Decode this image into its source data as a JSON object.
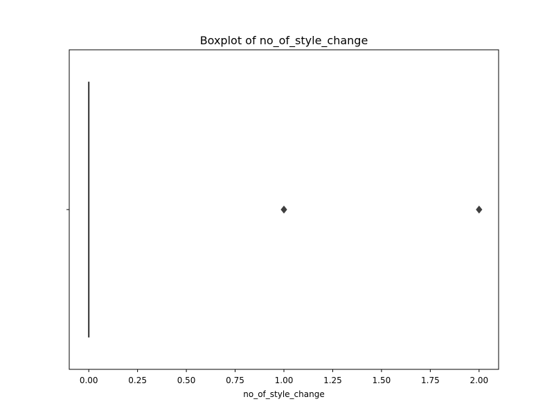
{
  "chart_data": {
    "type": "boxplot",
    "title": "Boxplot of no_of_style_change",
    "xlabel": "no_of_style_change",
    "ylabel": "",
    "orientation": "horizontal",
    "xlim": [
      -0.1,
      2.1
    ],
    "xticks": [
      0.0,
      0.25,
      0.5,
      0.75,
      1.0,
      1.25,
      1.5,
      1.75,
      2.0
    ],
    "xtick_labels": [
      "0.00",
      "0.25",
      "0.50",
      "0.75",
      "1.00",
      "1.25",
      "1.50",
      "1.75",
      "2.00"
    ],
    "grid": false,
    "box": {
      "min": 0.0,
      "q1": 0.0,
      "median": 0.0,
      "q3": 0.0,
      "max": 0.0
    },
    "outliers": [
      1.0,
      2.0
    ],
    "colors": {
      "box_edge": "#3f3f3f",
      "outlier": "#3f3f3f",
      "axes": "#000000"
    }
  }
}
